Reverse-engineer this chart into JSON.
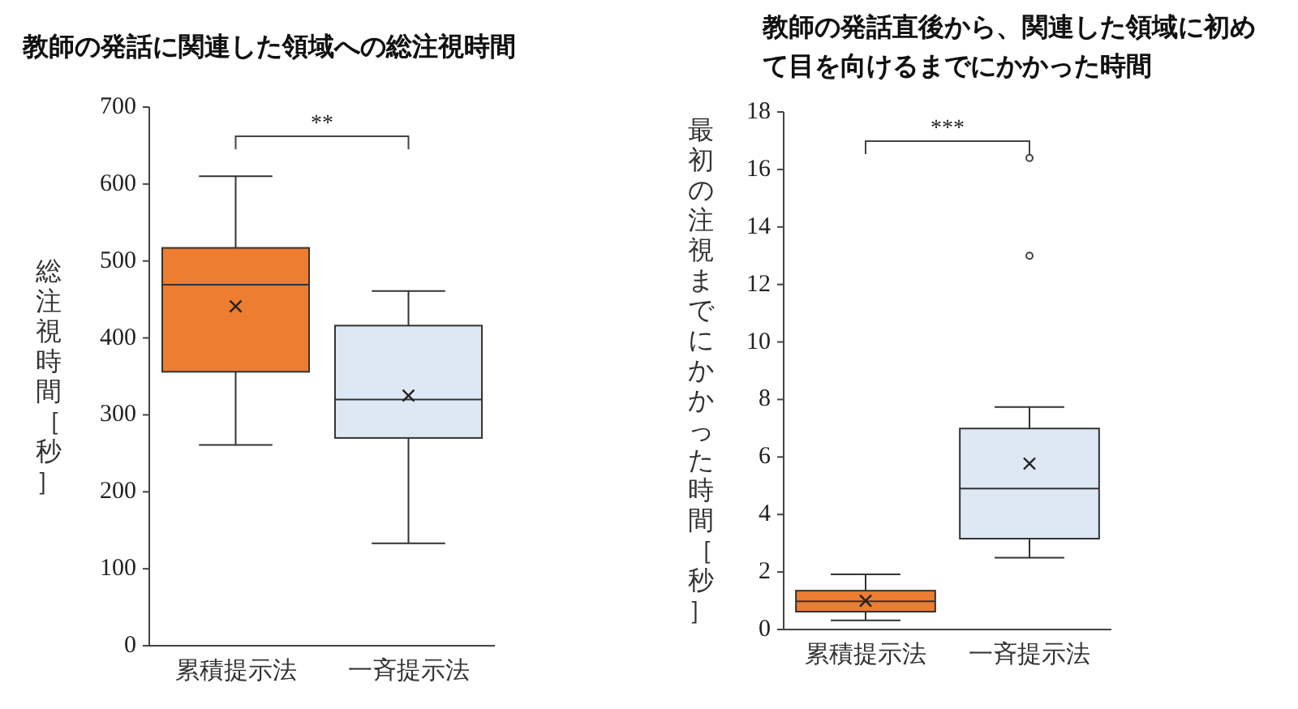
{
  "chart_data": [
    {
      "type": "box",
      "title": "教師の発話に関連した領域への総注視時間",
      "ylabel": "総注視時間［秒］",
      "categories": [
        "累積提示法",
        "一斉提示法"
      ],
      "colors": [
        "#ed7d31",
        "#dde8f4"
      ],
      "boxes": [
        {
          "low": 261,
          "q1": 356,
          "median": 469,
          "q3": 517,
          "high": 610,
          "mean": 441
        },
        {
          "low": 133,
          "q1": 270,
          "median": 320,
          "q3": 416,
          "high": 461,
          "mean": 325
        }
      ],
      "ylim": [
        0,
        700
      ],
      "yticks": [
        0,
        100,
        200,
        300,
        400,
        500,
        600,
        700
      ],
      "annotations": [
        "**"
      ]
    },
    {
      "type": "box",
      "title": "教師の発話直後から、関連した領域に初めて目を向けるまでにかかった時間",
      "ylabel": "最初の注視までにかかった時間［秒］",
      "categories": [
        "累積提示法",
        "一斉提示法"
      ],
      "colors": [
        "#ed7d31",
        "#dde8f4"
      ],
      "boxes": [
        {
          "low": 0.32,
          "q1": 0.62,
          "median": 0.98,
          "q3": 1.35,
          "high": 1.92,
          "mean": 1.0
        },
        {
          "low": 2.5,
          "q1": 3.16,
          "median": 4.9,
          "q3": 6.99,
          "high": 7.74,
          "mean": 5.77,
          "outliers": [
            13.0,
            16.4
          ]
        }
      ],
      "ylim": [
        0,
        18
      ],
      "yticks": [
        0,
        2,
        4,
        6,
        8,
        10,
        12,
        14,
        16,
        18
      ],
      "annotations": [
        "***"
      ]
    }
  ]
}
